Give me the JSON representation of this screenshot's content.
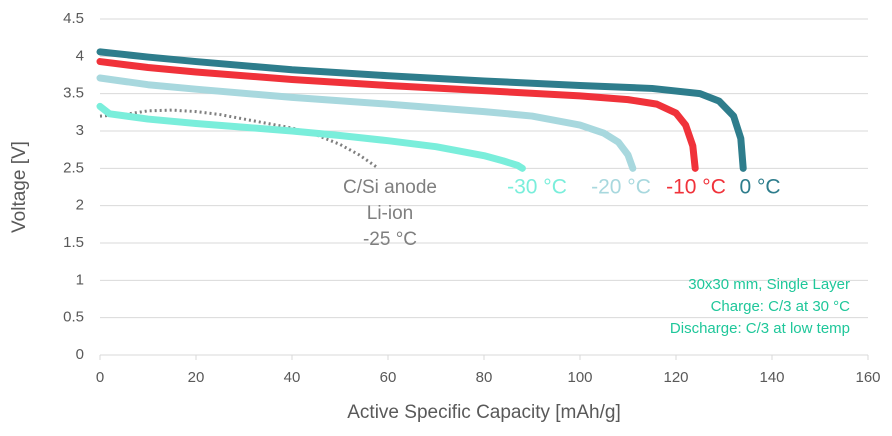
{
  "chart_data": {
    "type": "line",
    "x_label": "Active Specific Capacity [mAh/g]",
    "y_label": "Voltage [V]",
    "xlim": [
      0,
      160
    ],
    "xticks": [
      0,
      20,
      40,
      60,
      80,
      100,
      120,
      140,
      160
    ],
    "ylim": [
      0,
      4.5
    ],
    "yticks": [
      0,
      0.5,
      1,
      1.5,
      2,
      2.5,
      3,
      3.5,
      4,
      4.5
    ],
    "grid": true,
    "annotations": [
      "30x30 mm, Single Layer",
      "Charge: C/3 at 30 °C",
      "Discharge: C/3 at low temp"
    ],
    "series": [
      {
        "name": "C/Si anode\nLi-ion\n-25 °C",
        "color": "#7f7f7f",
        "style": "dotted",
        "x": [
          0,
          5,
          10,
          15,
          20,
          25,
          30,
          35,
          40,
          45,
          50,
          54,
          58
        ],
        "values": [
          3.2,
          3.22,
          3.27,
          3.28,
          3.26,
          3.22,
          3.16,
          3.1,
          3.04,
          2.95,
          2.82,
          2.68,
          2.5
        ]
      },
      {
        "name": "-30 °C",
        "color": "#7aeedb",
        "style": "solid",
        "x": [
          0,
          2,
          10,
          20,
          30,
          40,
          50,
          60,
          70,
          80,
          84,
          87,
          88
        ],
        "values": [
          3.33,
          3.23,
          3.16,
          3.1,
          3.05,
          3.0,
          2.94,
          2.87,
          2.79,
          2.67,
          2.6,
          2.54,
          2.5
        ]
      },
      {
        "name": "-20 °C",
        "color": "#a8d8de",
        "style": "solid",
        "x": [
          0,
          10,
          20,
          40,
          60,
          80,
          90,
          100,
          105,
          108,
          110,
          111
        ],
        "values": [
          3.71,
          3.62,
          3.56,
          3.45,
          3.36,
          3.26,
          3.2,
          3.08,
          2.97,
          2.85,
          2.68,
          2.5
        ]
      },
      {
        "name": "-10 °C",
        "color": "#f0323a",
        "style": "solid",
        "x": [
          0,
          10,
          20,
          40,
          60,
          80,
          100,
          110,
          116,
          120,
          122,
          123.5,
          124
        ],
        "values": [
          3.93,
          3.85,
          3.79,
          3.69,
          3.61,
          3.54,
          3.47,
          3.42,
          3.36,
          3.24,
          3.08,
          2.8,
          2.5
        ]
      },
      {
        "name": "0 °C",
        "color": "#2e7d8c",
        "style": "solid",
        "x": [
          0,
          10,
          20,
          40,
          60,
          80,
          100,
          115,
          125,
          129,
          132,
          133.5,
          134
        ],
        "values": [
          4.06,
          3.99,
          3.93,
          3.82,
          3.74,
          3.67,
          3.61,
          3.57,
          3.5,
          3.4,
          3.2,
          2.9,
          2.5
        ]
      }
    ]
  }
}
